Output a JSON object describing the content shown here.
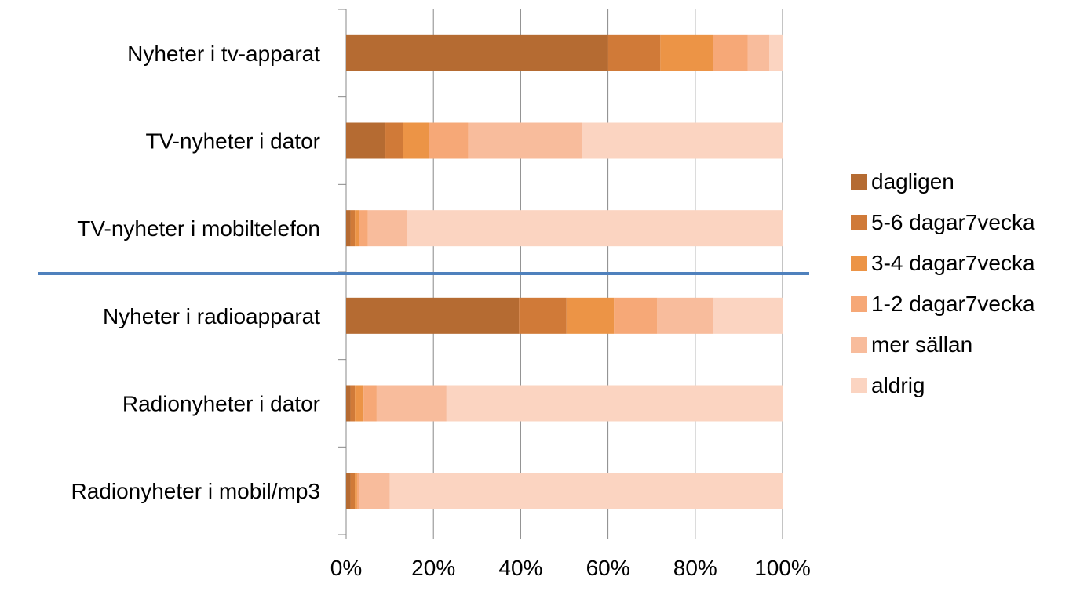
{
  "chart_data": {
    "type": "bar",
    "orientation": "horizontal",
    "stacked": "100%",
    "categories": [
      "Nyheter i tv-apparat",
      "TV-nyheter i dator",
      "TV-nyheter i mobiltelefon",
      "Nyheter i radioapparat",
      "Radionyheter i dator",
      "Radionyheter i mobil/mp3"
    ],
    "series": [
      {
        "name": "dagligen",
        "color": "#b56b32",
        "values": [
          60,
          9,
          1,
          40,
          1,
          1
        ]
      },
      {
        "name": "5-6 dagar7vecka",
        "color": "#d07a38",
        "values": [
          12,
          4,
          1,
          11,
          1,
          1
        ]
      },
      {
        "name": "3-4 dagar7vecka",
        "color": "#ec9446",
        "values": [
          12,
          6,
          1,
          11,
          2,
          0.5
        ]
      },
      {
        "name": "1-2 dagar7vecka",
        "color": "#f6a877",
        "values": [
          8,
          9,
          2,
          10,
          3,
          0.5
        ]
      },
      {
        "name": "mer sällan",
        "color": "#f8bc9c",
        "values": [
          5,
          26,
          9,
          13,
          16,
          7
        ]
      },
      {
        "name": "aldrig",
        "color": "#fbd4c1",
        "values": [
          3,
          46,
          86,
          16,
          77,
          90
        ]
      }
    ],
    "xlim": [
      0,
      100
    ],
    "x_ticks": [
      "0%",
      "20%",
      "40%",
      "60%",
      "80%",
      "100%"
    ],
    "grid": true,
    "grid_color": "#888888",
    "separator_color": "#4f81bd",
    "separator_between": [
      "TV-nyheter i mobiltelefon",
      "Nyheter i radioapparat"
    ],
    "legend_position": "right",
    "title": "",
    "xlabel": "",
    "ylabel": ""
  }
}
